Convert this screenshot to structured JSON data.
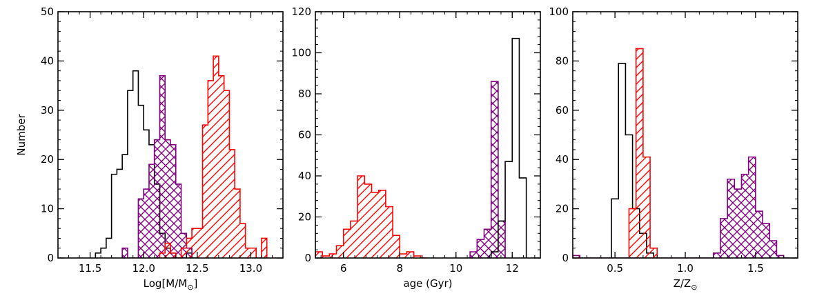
{
  "chart_data": [
    {
      "type": "histogram",
      "xlabel": "Log[M/M",
      "xlabel_sub": "⊙",
      "xlabel_close": "]",
      "ylabel": "Number",
      "xlim": [
        11.2,
        13.3
      ],
      "ylim": [
        0,
        50
      ],
      "xticks": [
        11.5,
        12.0,
        12.5,
        13.0
      ],
      "xtick_labels": [
        "11.5",
        "12.0",
        "12.5",
        "13.0"
      ],
      "yticks": [
        0,
        10,
        20,
        30,
        40,
        50
      ],
      "ytick_labels": [
        "0",
        "10",
        "20",
        "30",
        "40",
        "50"
      ],
      "series": [
        {
          "style": "outline",
          "color": "#000000",
          "edges": [
            11.55,
            11.6,
            11.65,
            11.7,
            11.75,
            11.8,
            11.85,
            11.9,
            11.95,
            12.0,
            12.05,
            12.1,
            12.15,
            12.2,
            12.25,
            12.3,
            12.35,
            12.4,
            12.45,
            12.5
          ],
          "values": [
            1,
            2,
            4,
            17,
            18,
            21,
            34,
            38,
            31,
            26,
            23,
            15,
            5,
            2,
            1,
            0,
            0,
            1,
            0
          ]
        },
        {
          "style": "crosshatch",
          "color": "#800080",
          "edges": [
            11.8,
            11.85,
            11.9,
            11.95,
            12.0,
            12.05,
            12.1,
            12.15,
            12.2,
            12.25,
            12.3,
            12.35,
            12.4,
            12.45
          ],
          "values": [
            2,
            0,
            0,
            12,
            14,
            19,
            24,
            37,
            24,
            23,
            15,
            5,
            2
          ]
        },
        {
          "style": "diagonal",
          "color": "#ff0000",
          "edges": [
            12.15,
            12.2,
            12.25,
            12.3,
            12.35,
            12.4,
            12.45,
            12.5,
            12.55,
            12.6,
            12.65,
            12.7,
            12.75,
            12.8,
            12.85,
            12.9,
            12.95,
            13.0,
            13.05,
            13.1,
            13.15
          ],
          "values": [
            1,
            3,
            1,
            0,
            2,
            4,
            6,
            6,
            27,
            36,
            41,
            37,
            34,
            22,
            14,
            7,
            2,
            2,
            0,
            4
          ]
        }
      ]
    },
    {
      "type": "histogram",
      "xlabel": "age (Gyr)",
      "xlim": [
        5,
        13
      ],
      "ylim": [
        0,
        120
      ],
      "xticks": [
        6,
        8,
        10,
        12
      ],
      "xtick_labels": [
        "6",
        "8",
        "10",
        "12"
      ],
      "yticks": [
        0,
        20,
        40,
        60,
        80,
        100,
        120
      ],
      "ytick_labels": [
        "0",
        "20",
        "40",
        "60",
        "80",
        "100",
        "120"
      ],
      "series": [
        {
          "style": "diagonal",
          "color": "#ff0000",
          "edges": [
            5.0,
            5.25,
            5.5,
            5.75,
            6.0,
            6.25,
            6.5,
            6.75,
            7.0,
            7.25,
            7.5,
            7.75,
            8.0,
            8.25,
            8.5,
            8.75,
            9.0
          ],
          "values": [
            3,
            1,
            2,
            6,
            14,
            18,
            40,
            36,
            32,
            33,
            25,
            11,
            2,
            3,
            1,
            0
          ]
        },
        {
          "style": "crosshatch",
          "color": "#800080",
          "edges": [
            10.5,
            10.75,
            11.0,
            11.25,
            11.5,
            11.75
          ],
          "values": [
            3,
            9,
            14,
            86,
            18
          ]
        },
        {
          "style": "outline",
          "color": "#000000",
          "edges": [
            11.25,
            11.5,
            11.75,
            12.0,
            12.25,
            12.5
          ],
          "values": [
            3,
            18,
            47,
            107,
            39
          ]
        }
      ]
    },
    {
      "type": "histogram",
      "xlabel": "Z/Z",
      "xlabel_sub": "⊙",
      "xlim": [
        0.2,
        1.8
      ],
      "ylim": [
        0,
        100
      ],
      "xticks": [
        0.5,
        1.0,
        1.5
      ],
      "xtick_labels": [
        "0.5",
        "1.0",
        "1.5"
      ],
      "yticks": [
        0,
        20,
        40,
        60,
        80,
        100
      ],
      "ytick_labels": [
        "0",
        "20",
        "40",
        "60",
        "80",
        "100"
      ],
      "series": [
        {
          "style": "outline",
          "color": "#000000",
          "edges": [
            0.475,
            0.525,
            0.575,
            0.625,
            0.675,
            0.725,
            0.775
          ],
          "values": [
            24,
            79,
            50,
            20,
            10,
            2
          ]
        },
        {
          "style": "diagonal",
          "color": "#ff0000",
          "edges": [
            0.6,
            0.65,
            0.7,
            0.75,
            0.8
          ],
          "values": [
            20,
            85,
            41,
            4
          ]
        },
        {
          "style": "crosshatch",
          "color": "#800080",
          "edges": [
            0.2,
            0.25,
            0.3,
            0.35,
            1.2,
            1.25,
            1.3,
            1.35,
            1.4,
            1.45,
            1.5,
            1.55,
            1.6,
            1.65,
            1.7,
            1.75
          ],
          "values": [
            1,
            0,
            0,
            0,
            2,
            16,
            32,
            28,
            34,
            41,
            19,
            14,
            7,
            1,
            0
          ]
        }
      ]
    }
  ]
}
